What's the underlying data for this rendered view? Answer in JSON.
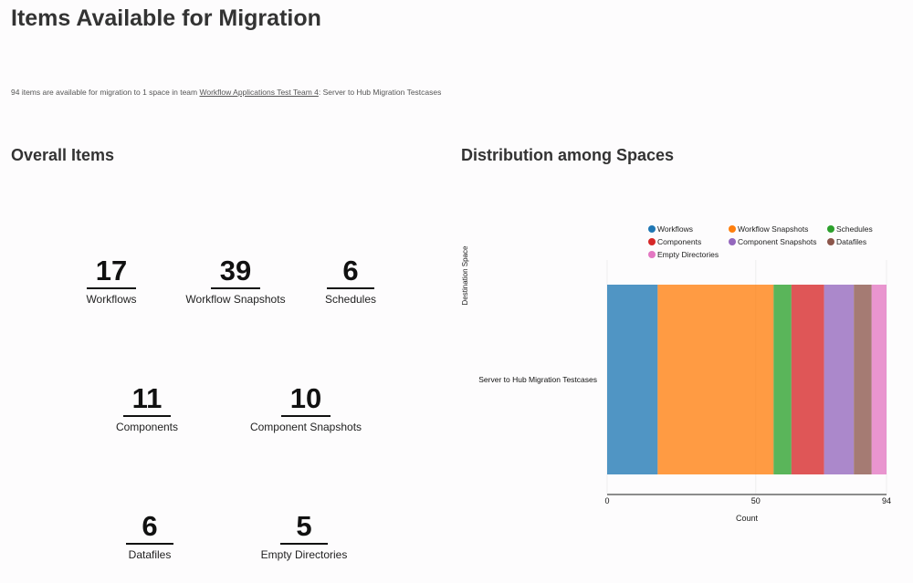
{
  "page": {
    "title": "Items Available for Migration",
    "summary_prefix": "94 items are available for migration to 1 space in team ",
    "team_link": "Workflow Applications Test Team 4",
    "summary_suffix": ": Server to Hub Migration Testcases"
  },
  "overall": {
    "heading": "Overall Items",
    "stats": [
      {
        "value": "17",
        "label": "Workflows"
      },
      {
        "value": "39",
        "label": "Workflow Snapshots"
      },
      {
        "value": "6",
        "label": "Schedules"
      },
      {
        "value": "11",
        "label": "Components"
      },
      {
        "value": "10",
        "label": "Component Snapshots"
      },
      {
        "value": "6",
        "label": "Datafiles"
      },
      {
        "value": "5",
        "label": "Empty Directories"
      }
    ]
  },
  "distribution": {
    "heading": "Distribution among Spaces"
  },
  "chart_data": {
    "type": "bar",
    "orientation": "horizontal",
    "stacked": true,
    "categories": [
      "Server to Hub Migration Testcases"
    ],
    "series": [
      {
        "name": "Workflows",
        "values": [
          17
        ],
        "color": "#1f77b4"
      },
      {
        "name": "Workflow Snapshots",
        "values": [
          39
        ],
        "color": "#ff7f0e"
      },
      {
        "name": "Schedules",
        "values": [
          6
        ],
        "color": "#2ca02c"
      },
      {
        "name": "Components",
        "values": [
          11
        ],
        "color": "#d62728"
      },
      {
        "name": "Component Snapshots",
        "values": [
          10
        ],
        "color": "#9467bd"
      },
      {
        "name": "Datafiles",
        "values": [
          6
        ],
        "color": "#8c564b"
      },
      {
        "name": "Empty Directories",
        "values": [
          5
        ],
        "color": "#e377c2"
      }
    ],
    "xlabel": "Count",
    "ylabel": "Destination Space",
    "xlim": [
      0,
      94
    ],
    "xticks": [
      "0",
      "50",
      "94"
    ],
    "legend": "top",
    "grid": true
  }
}
